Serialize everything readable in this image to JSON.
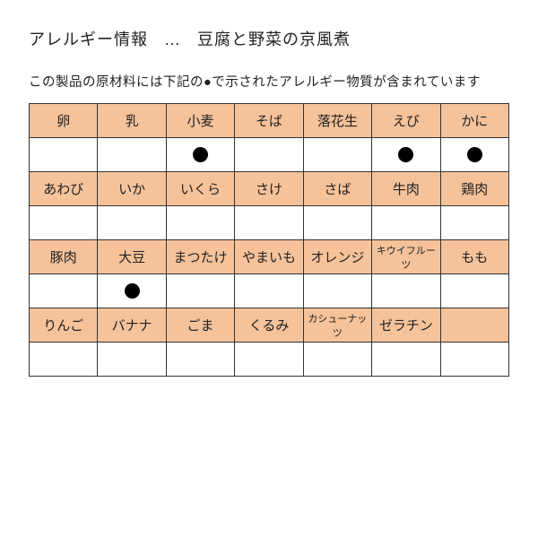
{
  "title_prefix": "アレルギー情報",
  "title_sep": "…",
  "title_product": "豆腐と野菜の京風煮",
  "subtitle": "この製品の原材料には下記の●で示されたアレルギー物質が含まれています",
  "colors": {
    "header_bg": "#f5c29a",
    "value_bg": "#ffffff",
    "border": "#333333",
    "dot": "#000000",
    "text": "#222222"
  },
  "table": {
    "cols": 7,
    "rows": [
      {
        "type": "header",
        "cells": [
          "卵",
          "乳",
          "小麦",
          "そば",
          "落花生",
          "えび",
          "かに"
        ]
      },
      {
        "type": "value",
        "marks": [
          false,
          false,
          true,
          false,
          false,
          true,
          true
        ]
      },
      {
        "type": "header",
        "cells": [
          "あわび",
          "いか",
          "いくら",
          "さけ",
          "さば",
          "牛肉",
          "鶏肉"
        ]
      },
      {
        "type": "value",
        "marks": [
          false,
          false,
          false,
          false,
          false,
          false,
          false
        ]
      },
      {
        "type": "header",
        "cells": [
          "豚肉",
          "大豆",
          "まつたけ",
          "やまいも",
          "オレンジ",
          "キウイフルーツ",
          "もも"
        ],
        "small": [
          false,
          false,
          false,
          false,
          false,
          true,
          false
        ]
      },
      {
        "type": "value",
        "marks": [
          false,
          true,
          false,
          false,
          false,
          false,
          false
        ]
      },
      {
        "type": "header",
        "cells": [
          "りんご",
          "バナナ",
          "ごま",
          "くるみ",
          "カシューナッツ",
          "ゼラチン",
          ""
        ],
        "small": [
          false,
          false,
          false,
          false,
          true,
          false,
          false
        ]
      },
      {
        "type": "value",
        "marks": [
          false,
          false,
          false,
          false,
          false,
          false,
          false
        ]
      }
    ]
  }
}
